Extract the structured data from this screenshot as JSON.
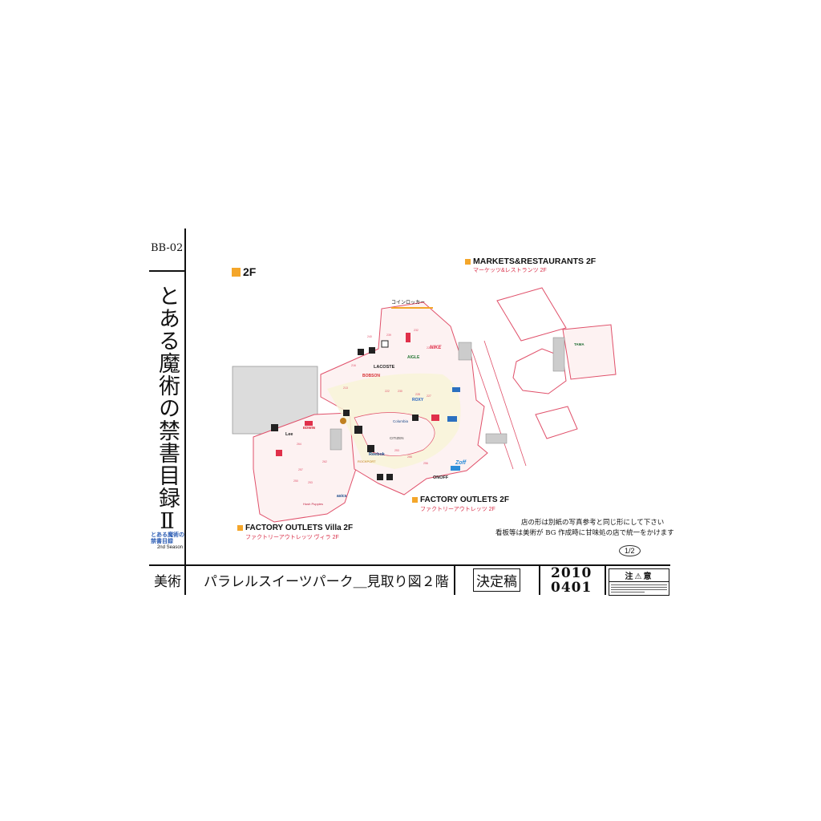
{
  "sheet": {
    "code": "BB-02",
    "title": "とある魔術の禁書目録Ⅱ",
    "logo_title": "とある魔術の禁書目録",
    "logo_season": "2nd Season",
    "department": "美術",
    "drawing_name": "パラレルスイーツパーク＿見取り図２階",
    "status": "決定稿",
    "date_year": "2010",
    "date_md": "0401",
    "caution_label": "注⚠意",
    "page_mark": "1/2"
  },
  "map": {
    "floor": "2F",
    "markets_title": "MARKETS&RESTAURANTS 2F",
    "markets_sub": "マーケッツ&レストランツ 2F",
    "outlets_title": "FACTORY OUTLETS 2F",
    "outlets_sub": "ファクトリーアウトレッツ 2F",
    "villa_title": "FACTORY OUTLETS Villa 2F",
    "villa_sub": "ファクトリーアウトレッツ ヴィラ 2F",
    "coin_locker": "コインロッカー",
    "note_line1": "店の形は別紙の写真参考と同じ形にして下さい",
    "note_line2": "看板等は美術が BG 作成時に甘味処の店で統一をかけます",
    "stores": {
      "lacoste": "LACOSTE",
      "bobson": "BOBSON",
      "reebok": "Reebok",
      "roxy": "ROXY",
      "zoff": "Zoff",
      "onoff": "ONOFF",
      "citizen": "CITIZEN",
      "columbia": "Columbia",
      "lee": "Lee",
      "edwin": "EDWIN",
      "aigle": "AIGLE",
      "nike": "NIKE",
      "asics": "asics",
      "tamahome": "TAMA",
      "rockport": "ROCKPORT",
      "hushpuppies": "Hush Puppies"
    }
  },
  "colors": {
    "orange": "#f4a62a",
    "mall_red": "#e0506a",
    "mall_fill": "#fdf2f2",
    "walkway": "#f8f4d8",
    "gray_block": "#dcdcdc"
  }
}
